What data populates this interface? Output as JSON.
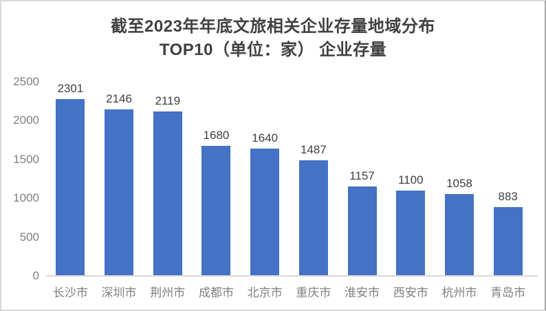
{
  "title": {
    "line1": "截至2023年年底文旅相关企业存量地域分布",
    "line2": "TOP10（单位：家） 企业存量"
  },
  "chart_data": {
    "type": "bar",
    "title": "截至2023年年底文旅相关企业存量地域分布 TOP10（单位：家） 企业存量",
    "categories": [
      "长沙市",
      "深圳市",
      "荆州市",
      "成都市",
      "北京市",
      "重庆市",
      "淮安市",
      "西安市",
      "杭州市",
      "青岛市"
    ],
    "values": [
      2301,
      2146,
      2119,
      1680,
      1640,
      1487,
      1157,
      1100,
      1058,
      883
    ],
    "xlabel": "",
    "ylabel": "",
    "ylim": [
      0,
      2500
    ],
    "yticks": [
      0,
      500,
      1000,
      1500,
      2000,
      2500
    ],
    "grid": false,
    "legend": "none",
    "data_labels": true
  },
  "colors": {
    "bar": "#4472C4",
    "title_text": "#404040",
    "data_label": "#404040",
    "axis_label": "#808080",
    "axis_line": "#d9d9d9",
    "frame_border": "#d9d9d9"
  }
}
